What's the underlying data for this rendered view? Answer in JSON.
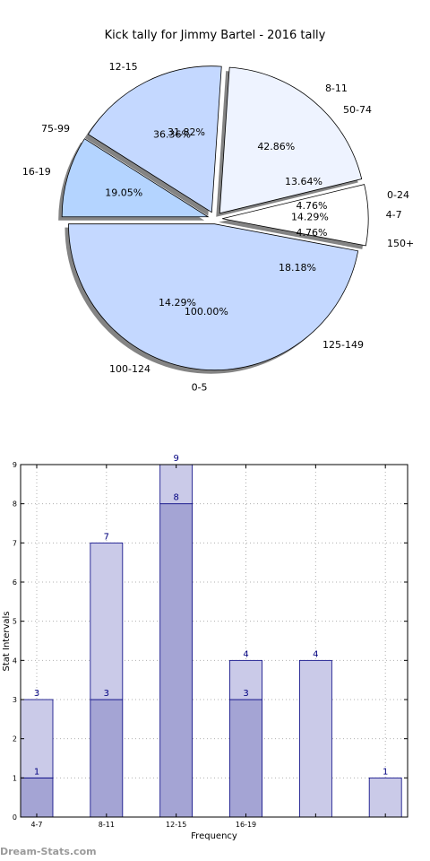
{
  "chart_data": [
    {
      "type": "pie",
      "title": "Kick tally for Jimmy Bartel - 2016 tally",
      "rings": [
        {
          "name": "outer",
          "slices": [
            {
              "label": "0-5",
              "value": 100.0,
              "pct_text": "100.00%",
              "color": "#c4d8ff"
            },
            {
              "label": "4-7",
              "value": 14.29,
              "pct_text": "14.29%",
              "color": "#ffffff"
            },
            {
              "label": "8-11",
              "value": 42.86,
              "pct_text": "42.86%",
              "color": "#eef3ff"
            },
            {
              "label": "12-15",
              "value": 36.36,
              "pct_text": "36.36%",
              "color": "#c4d8ff"
            },
            {
              "label": "16-19",
              "value": 19.05,
              "pct_text": "19.05%",
              "color": "#b4d4ff"
            }
          ]
        },
        {
          "name": "inner",
          "slices": [
            {
              "label": "0-24",
              "value": 4.76,
              "pct_text": "4.76%"
            },
            {
              "label": "50-74",
              "value": 13.64,
              "pct_text": "13.64%"
            },
            {
              "label": "75-99",
              "value": 31.82,
              "pct_text": "31.82%"
            },
            {
              "label": "100-124",
              "value": 14.29,
              "pct_text": "14.29%"
            },
            {
              "label": "125-149",
              "value": 18.18,
              "pct_text": "18.18%"
            },
            {
              "label": "150+",
              "value": 4.76,
              "pct_text": "4.76%"
            }
          ]
        }
      ]
    },
    {
      "type": "bar",
      "stacked": true,
      "categories": [
        "4-7",
        "8-11",
        "12-15",
        "16-19",
        "",
        ""
      ],
      "series": [
        {
          "values": [
            1,
            3,
            8,
            3,
            0,
            0
          ],
          "color": "#a4a4d4"
        },
        {
          "values": [
            2,
            4,
            1,
            1,
            4,
            1
          ],
          "color": "#cacae8"
        }
      ],
      "top_labels": [
        "3",
        "7",
        "9",
        "4",
        "4",
        "1"
      ],
      "inner_labels": [
        "1",
        "3",
        "8",
        "3",
        "",
        ""
      ],
      "xlabel": "Frequency",
      "ylabel": "Stat Intervals",
      "ylim": [
        0,
        9
      ],
      "yticks": [
        0,
        1,
        2,
        3,
        4,
        5,
        6,
        7,
        8,
        9
      ],
      "grid": true
    }
  ],
  "watermark": "Dream-Stats.com"
}
